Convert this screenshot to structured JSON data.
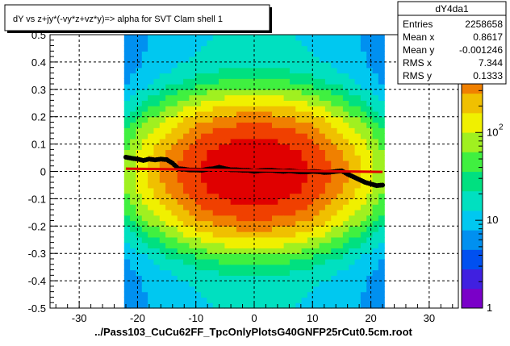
{
  "title": "dY vs  z+jy*(-vy*z+vz*y)=> alpha for SVT Clam shell 1",
  "xlabel": "../Pass103_CuCu62FF_TpcOnlyPlotsG40GNFP25rCut0.5cm.root",
  "stats": {
    "name": "dY4da1",
    "rows": [
      {
        "label": "Entries",
        "value": "2258658"
      },
      {
        "label": "Mean x",
        "value": "0.8617"
      },
      {
        "label": "Mean y",
        "value": "-0.001246"
      },
      {
        "label": "RMS x",
        "value": "7.344"
      },
      {
        "label": "RMS y",
        "value": "0.1333"
      }
    ]
  },
  "palette": {
    "scale": "log",
    "range": [
      1,
      1300
    ],
    "tick_labels": [
      "1",
      "10",
      "10",
      "2",
      "3"
    ],
    "colors": [
      "#7a00c8",
      "#4020e0",
      "#0050f0",
      "#0090f0",
      "#00c8f0",
      "#00e0c0",
      "#00e080",
      "#40f040",
      "#a0f020",
      "#f0f000",
      "#f0c000",
      "#f08000",
      "#f04000",
      "#e00000"
    ]
  },
  "chart_data": {
    "type": "heatmap",
    "xlim": [
      -35,
      35
    ],
    "ylim": [
      -0.5,
      0.5
    ],
    "x_ticks": [
      "-30",
      "-20",
      "-10",
      "0",
      "10",
      "20",
      "30"
    ],
    "y_ticks": [
      "-0.5",
      "-0.4",
      "-0.3",
      "-0.2",
      "-0.1",
      "0",
      "0.1",
      "0.2",
      "0.3",
      "0.4",
      "0.5"
    ],
    "grid": true,
    "occupied_x_range": [
      -22.3,
      22.3
    ],
    "core_density": {
      "x_sigma": 9,
      "y_sigma": 0.12,
      "peak": 1300
    },
    "profile_points": {
      "x": [
        -22,
        -21,
        -20,
        -19,
        -18,
        -17,
        -16,
        -15,
        -14,
        -13,
        -12,
        -11,
        -10,
        -9,
        -8,
        -7,
        -6,
        -5,
        -4,
        -3,
        -2,
        -1,
        0,
        1,
        2,
        3,
        4,
        5,
        6,
        7,
        8,
        9,
        10,
        11,
        12,
        13,
        14,
        15,
        16,
        17,
        18,
        19,
        20,
        21,
        22
      ],
      "y": [
        0.052,
        0.048,
        0.045,
        0.04,
        0.045,
        0.042,
        0.045,
        0.043,
        0.03,
        0.01,
        0.008,
        0.005,
        0.005,
        0.004,
        0.008,
        0.01,
        0.015,
        0.01,
        0.006,
        0.006,
        0.004,
        0.004,
        0.0,
        0.003,
        0.004,
        0.004,
        0.002,
        0.0,
        0.002,
        0.0,
        -0.002,
        -0.002,
        0.0,
        -0.001,
        -0.004,
        -0.003,
        0.0,
        0.002,
        -0.01,
        -0.02,
        -0.03,
        -0.04,
        -0.046,
        -0.052,
        -0.05
      ]
    },
    "fit_line": {
      "x": [
        -22,
        22
      ],
      "y": [
        0.01,
        -0.002
      ],
      "color": "#e00000"
    }
  }
}
